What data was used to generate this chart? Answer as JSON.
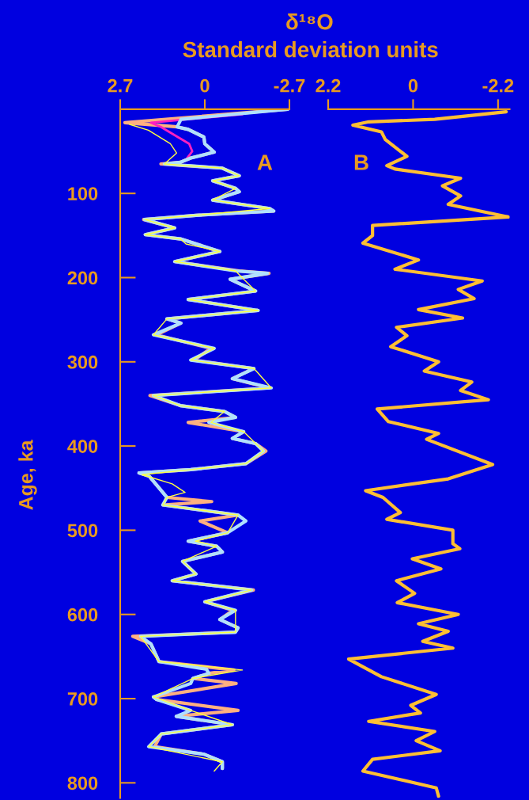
{
  "chart_data": [
    {
      "type": "line",
      "title": "δ¹⁸O",
      "xlabel": "Standard deviation units",
      "ylabel": "Age, ka",
      "annotations": [
        "A"
      ],
      "xlim": [
        2.7,
        -2.7
      ],
      "xticks": [
        2.7,
        0,
        {
          "value": -2.7,
          "label": "-2.7"
        }
      ],
      "ylim": [
        818,
        0
      ],
      "yticks": [
        100,
        200,
        300,
        400,
        500,
        600,
        700,
        800
      ],
      "series": [
        {
          "color": "#ffb080",
          "x": [
            -2.65,
            2.55,
            0.88,
            0.53,
            0.03,
            0,
            -0.3,
            0.45,
            0.78,
            1.4,
            -0.56,
            -1.1,
            -0.25,
            -0.98,
            -1.1,
            -0.25,
            -2.07,
            -2.2,
            0.28,
            1.95,
            0.96,
            1.9,
            0.78,
            -0.48,
            0.96,
            -1.1,
            -2.05,
            -0.81,
            -1.62,
            0.53,
            -1.7,
            1.21,
            0.76,
            1.55,
            -0.2,
            0.35,
            -1.55,
            -0.88,
            -2.05,
            1.75,
            0.78,
            -0.63,
            -0.98,
            0.53,
            -1.24,
            -0.88,
            -1.62,
            -1.95,
            -1.31,
            0.45,
            2.1,
            1.77,
            1.21,
            -0.22,
            1.34,
            -1.06,
            0.15,
            -0.73,
            0.53,
            -0.38,
            -0.56,
            0.71,
            0.28,
            1.04,
            -1.55,
            0,
            -0.9,
            -0.48,
            -1.06,
            -0.98,
            2.3,
            1.72,
            1.46,
            -0.93,
            -0.13,
            0.38,
            -1.0,
            1.64,
            1.54,
            -1.06,
            0.91,
            -0.88,
            1.39,
            1.6,
            0.03,
            -0.56,
            -0.56
          ],
          "values": [
            0,
            16,
            21,
            24,
            33,
            41,
            51,
            58,
            63,
            65,
            70,
            79,
            85,
            94,
            98,
            108,
            118,
            121,
            126,
            131,
            141,
            149,
            154,
            169,
            181,
            192,
            195,
            202,
            216,
            226,
            239,
            249,
            254,
            268,
            284,
            298,
            308,
            320,
            331,
            340,
            352,
            359,
            366,
            372,
            383,
            391,
            397,
            406,
            421,
            428,
            432,
            436,
            461,
            466,
            470,
            482,
            489,
            503,
            513,
            519,
            526,
            537,
            552,
            560,
            571,
            585,
            595,
            606,
            616,
            621,
            626,
            635,
            656,
            666,
            670,
            676,
            682,
            698,
            701,
            714,
            721,
            731,
            742,
            757,
            766,
            775,
            783
          ]
        },
        {
          "color": "#ff20c0",
          "x": [
            -1.2,
            1.72,
            1.4,
            1.0,
            0.5,
            0.4,
            0.6
          ],
          "values": [
            6,
            16,
            21,
            30,
            41,
            50,
            60
          ]
        },
        {
          "color": "#b0e0ff",
          "x": [
            -2.65,
            0.76,
            0.88,
            0.53,
            0.03,
            0,
            -0.3,
            0.45,
            0.78,
            1.29,
            -0.56,
            -1.1,
            -0.25,
            -0.98,
            -1.1,
            -0.25,
            -2.07,
            -2.2,
            0.28,
            1.92,
            0.96,
            1.9,
            0.78,
            -0.48,
            0.96,
            -0.98,
            -2.0,
            -0.81,
            -1.62,
            0.53,
            -1.7,
            1.21,
            0.76,
            1.64,
            -0.3,
            0.45,
            -1.57,
            -0.88,
            -2.12,
            1.64,
            0.78,
            -0.63,
            -0.98,
            -0.13,
            -1.24,
            -0.88,
            -1.62,
            -1.87,
            -1.31,
            0.45,
            2.1,
            1.77,
            1.21,
            1.34,
            -1.06,
            -1.31,
            -0.73,
            0.53,
            -0.38,
            -0.56,
            0.71,
            0.28,
            1.04,
            -1.49,
            0,
            -0.98,
            -0.48,
            -1.06,
            -0.98,
            2.05,
            1.72,
            1.46,
            -0.05,
            -0.13,
            0.38,
            0.45,
            1.64,
            1.54,
            0.45,
            0.91,
            -0.88,
            1.39,
            1.79,
            0.03,
            -0.56,
            -0.56
          ],
          "values": [
            0,
            12,
            21,
            24,
            33,
            41,
            51,
            58,
            63,
            65,
            70,
            79,
            85,
            94,
            98,
            108,
            118,
            121,
            126,
            131,
            141,
            149,
            154,
            169,
            181,
            192,
            195,
            202,
            216,
            226,
            239,
            249,
            254,
            268,
            284,
            298,
            308,
            320,
            331,
            340,
            352,
            359,
            366,
            372,
            383,
            391,
            397,
            406,
            421,
            428,
            432,
            436,
            461,
            470,
            482,
            489,
            503,
            513,
            519,
            526,
            537,
            552,
            560,
            571,
            585,
            595,
            606,
            616,
            621,
            626,
            635,
            656,
            665,
            670,
            676,
            682,
            698,
            701,
            714,
            721,
            731,
            742,
            757,
            766,
            775,
            783
          ]
        },
        {
          "color": "#ffff40",
          "x": [
            2.4,
            1.8,
            1.1,
            0.9,
            1.29,
            -0.56,
            -1.1,
            -0.25,
            -0.98,
            -0.25,
            -2.07,
            0.28,
            1.92,
            0.96,
            1.9,
            0.78,
            0.6,
            -0.48,
            0.96,
            -0.98,
            -1.62,
            0.53,
            -1.7,
            1.21,
            1.64,
            -0.3,
            0.45,
            -1.57,
            -2.12,
            1.64,
            0.78,
            -0.63,
            -0.2,
            -1.24,
            -1.87,
            -1.31,
            0.45,
            2.0,
            1.04,
            0.63,
            1.21,
            1.34,
            -1.06,
            -0.73,
            0.3,
            -0.38,
            0.71,
            0.28,
            1.04,
            -1.49,
            0,
            -0.98,
            -0.98,
            2.05,
            1.46,
            -1.2,
            0.38,
            1.64,
            0.45,
            -0.88,
            1.39,
            1.79,
            -0.56,
            -0.3
          ],
          "values": [
            18,
            25,
            41,
            52,
            65,
            70,
            79,
            85,
            94,
            108,
            118,
            126,
            131,
            141,
            149,
            154,
            160,
            169,
            181,
            192,
            216,
            226,
            239,
            249,
            268,
            284,
            298,
            308,
            331,
            340,
            352,
            359,
            372,
            383,
            406,
            421,
            428,
            434,
            445,
            455,
            461,
            470,
            482,
            503,
            513,
            519,
            537,
            552,
            560,
            571,
            585,
            595,
            621,
            626,
            656,
            666,
            676,
            698,
            714,
            731,
            742,
            757,
            775,
            786
          ]
        }
      ]
    },
    {
      "type": "line",
      "annotations": [
        "B"
      ],
      "tick_labels": "x",
      "xlim": [
        2.2,
        -2.5
      ],
      "xticks": [
        2.2,
        0,
        {
          "value": -2.2,
          "label": "-2.2"
        }
      ],
      "ylim": [
        818,
        0
      ],
      "yticks": [
        100,
        200,
        300,
        400,
        500,
        600,
        700,
        800
      ],
      "series": [
        {
          "color": "#ffbf33",
          "x": [
            -2.41,
            -0.56,
            1.15,
            1.56,
            0.82,
            0.72,
            0.16,
            0.68,
            0.47,
            -1.23,
            -0.76,
            -1.23,
            -0.91,
            -2.47,
            1.05,
            1.05,
            1.3,
            -0.14,
            0.47,
            -1.79,
            -1.17,
            -1.58,
            -0.14,
            -1.28,
            0.43,
            0.16,
            0.58,
            -0.66,
            -0.29,
            -1.52,
            -1.23,
            -1.95,
            0.93,
            0.64,
            -0.66,
            -0.35,
            -2.06,
            -0.91,
            1.23,
            0.78,
            0.33,
            0.68,
            -1.03,
            -1.03,
            -1.21,
            0.02,
            -0.72,
            0.43,
            -0.04,
            0.41,
            -1.17,
            -0.14,
            -0.91,
            -0.25,
            -1.03,
            1.67,
            0.82,
            -0.6,
            0.06,
            -0.19,
            1.15,
            -0.56,
            -0.08,
            -0.7,
            1.05,
            1.3,
            -0.6,
            -0.66
          ],
          "values": [
            3,
            12,
            15,
            19,
            27,
            36,
            56,
            67,
            71,
            82,
            91,
            103,
            113,
            128,
            138,
            150,
            159,
            179,
            190,
            204,
            214,
            225,
            238,
            248,
            259,
            269,
            282,
            300,
            311,
            324,
            334,
            345,
            356,
            371,
            385,
            392,
            422,
            439,
            453,
            461,
            479,
            487,
            500,
            516,
            522,
            534,
            546,
            560,
            575,
            586,
            600,
            611,
            620,
            632,
            640,
            653,
            674,
            695,
            708,
            717,
            727,
            739,
            750,
            762,
            772,
            786,
            806,
            816
          ]
        }
      ]
    }
  ]
}
